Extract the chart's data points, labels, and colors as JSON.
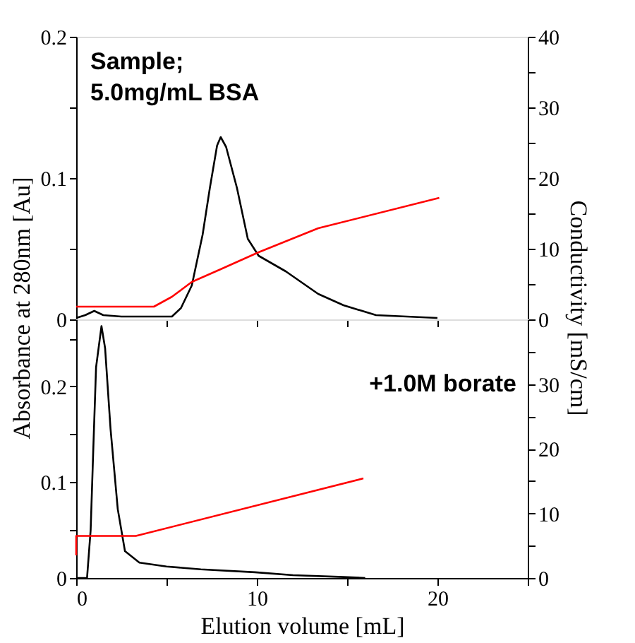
{
  "chart_data": [
    {
      "type": "line",
      "ylabel": "Absorbance at 280nm [Au]",
      "y2label": "Conductivity [mS/cm]",
      "annotations": [
        "Sample;\n5.0mg/mL  BSA"
      ],
      "xlim": [
        0,
        25
      ],
      "xticks": [
        0,
        {
          "value": 5,
          "label": null
        },
        10,
        {
          "value": 15,
          "label": null
        },
        20,
        {
          "value": 25,
          "label": null
        }
      ],
      "ylim": [
        0,
        0.2
      ],
      "yticks": [
        0,
        {
          "value": 0.05,
          "label": null
        },
        0.1,
        {
          "value": 0.15,
          "label": null
        },
        0.2
      ],
      "y2lim": [
        0,
        40
      ],
      "y2ticks": [
        0,
        {
          "value": 5,
          "label": null
        },
        10,
        {
          "value": 15,
          "label": null
        },
        20,
        {
          "value": 25,
          "label": null
        },
        30,
        {
          "value": 35,
          "label": null
        },
        40
      ],
      "tick_labels": "y",
      "grid": false,
      "series": [
        {
          "color": "#000000",
          "axis": "y",
          "x": [
            0,
            0.5,
            1.0,
            1.5,
            2.5,
            4,
            5.3,
            5.8,
            6.4,
            7.0,
            7.4,
            7.8,
            8.0,
            8.3,
            8.9,
            9.5,
            10.1,
            11.6,
            13.4,
            14.8,
            16.6,
            20
          ],
          "values": [
            0.001,
            0.003,
            0.006,
            0.003,
            0.002,
            0.002,
            0.002,
            0.008,
            0.024,
            0.06,
            0.093,
            0.123,
            0.129,
            0.122,
            0.093,
            0.057,
            0.045,
            0.034,
            0.018,
            0.01,
            0.003,
            0.001
          ]
        },
        {
          "color": "#ff0000",
          "axis": "y2",
          "x": [
            0,
            4.3,
            5.3,
            6.4,
            8.0,
            10.1,
            13.4,
            20.1
          ],
          "values": [
            1.8,
            1.8,
            3.2,
            5.3,
            7.1,
            9.5,
            12.9,
            17.2
          ]
        }
      ]
    },
    {
      "type": "line",
      "xlabel": "Elution volume [mL]",
      "annotations": [
        "+1.0M borate"
      ],
      "xlim": [
        0,
        25
      ],
      "xticks": [
        0,
        {
          "value": 5,
          "label": null
        },
        10,
        {
          "value": 15,
          "label": null
        },
        20,
        {
          "value": 25,
          "label": null
        }
      ],
      "ylim": [
        0,
        0.27
      ],
      "yticks": [
        0,
        {
          "value": 0.05,
          "label": null
        },
        0.1,
        {
          "value": 0.15,
          "label": null
        },
        0.2,
        {
          "value": 0.25,
          "label": null
        }
      ],
      "y2lim": [
        0,
        40
      ],
      "y2ticks": [
        0,
        {
          "value": 5,
          "label": null
        },
        10,
        {
          "value": 15,
          "label": null
        },
        20,
        {
          "value": 25,
          "label": null
        },
        30,
        {
          "value": 35,
          "label": null
        }
      ],
      "grid": false,
      "series": [
        {
          "color": "#000000",
          "axis": "y",
          "x": [
            0,
            0.6,
            0.8,
            0.94,
            1.1,
            1.4,
            1.6,
            1.9,
            2.3,
            2.7,
            3.5,
            5,
            6.9,
            9.9,
            12,
            14.8,
            16
          ],
          "values": [
            0,
            0,
            0.05,
            0.131,
            0.22,
            0.263,
            0.24,
            0.156,
            0.072,
            0.028,
            0.016,
            0.012,
            0.009,
            0.006,
            0.003,
            0.001,
            0
          ]
        },
        {
          "color": "#ff0000",
          "axis": "y2",
          "x": [
            0,
            0,
            3.3,
            15.9
          ],
          "values": [
            3.5,
            6.5,
            6.5,
            15.4
          ]
        }
      ]
    }
  ]
}
